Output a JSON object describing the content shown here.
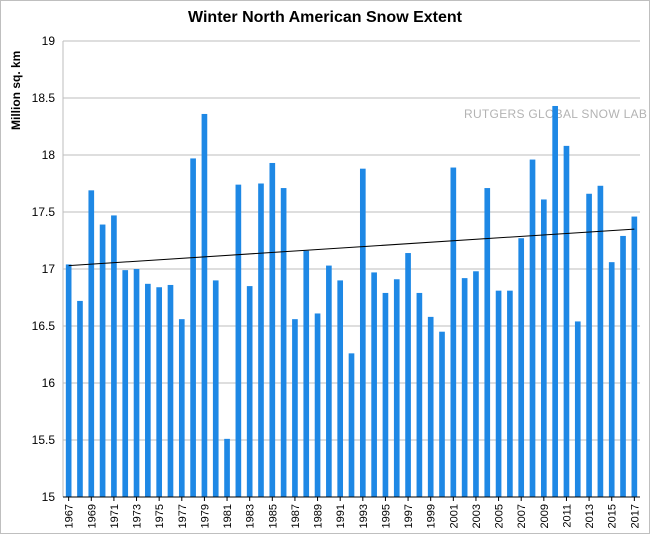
{
  "chart_data": {
    "type": "bar",
    "title": "Winter North American Snow Extent",
    "xlabel": "",
    "ylabel": "Million sq. km",
    "annotation": "RUTGERS GLOBAL SNOW LAB",
    "ylim": [
      15,
      19
    ],
    "yticks": [
      "15",
      "15.5",
      "16",
      "16.5",
      "17",
      "17.5",
      "18",
      "18.5",
      "19"
    ],
    "grid": "horizontal",
    "bar_color": "#1e88e5",
    "trendline_color": "#000000",
    "categories": [
      "1967",
      "1968",
      "1969",
      "1970",
      "1971",
      "1972",
      "1973",
      "1974",
      "1975",
      "1976",
      "1977",
      "1978",
      "1979",
      "1980",
      "1981",
      "1982",
      "1983",
      "1984",
      "1985",
      "1986",
      "1987",
      "1988",
      "1989",
      "1990",
      "1991",
      "1992",
      "1993",
      "1994",
      "1995",
      "1996",
      "1997",
      "1998",
      "1999",
      "2000",
      "2001",
      "2002",
      "2003",
      "2004",
      "2005",
      "2006",
      "2007",
      "2008",
      "2009",
      "2010",
      "2011",
      "2012",
      "2013",
      "2014",
      "2015",
      "2016",
      "2017"
    ],
    "xtick_labels": [
      "1967",
      "1969",
      "1971",
      "1973",
      "1975",
      "1977",
      "1979",
      "1981",
      "1983",
      "1985",
      "1987",
      "1989",
      "1991",
      "1993",
      "1995",
      "1997",
      "1999",
      "2001",
      "2003",
      "2005",
      "2007",
      "2009",
      "2011",
      "2013",
      "2015",
      "2017"
    ],
    "values": [
      17.04,
      16.72,
      17.69,
      17.39,
      17.47,
      16.99,
      17.0,
      16.87,
      16.84,
      16.86,
      16.56,
      17.97,
      18.36,
      16.9,
      15.51,
      17.74,
      16.85,
      17.75,
      17.93,
      17.71,
      16.56,
      17.16,
      16.61,
      17.03,
      16.9,
      16.26,
      17.88,
      16.97,
      16.79,
      16.91,
      17.14,
      16.79,
      16.58,
      16.45,
      17.89,
      16.92,
      16.98,
      17.71,
      16.81,
      16.81,
      17.27,
      17.96,
      17.61,
      18.43,
      18.08,
      16.54,
      17.66,
      17.73,
      17.06,
      17.29,
      17.46
    ],
    "trendline": {
      "start": {
        "x": "1967",
        "y": 17.03
      },
      "end": {
        "x": "2017",
        "y": 17.35
      }
    }
  }
}
